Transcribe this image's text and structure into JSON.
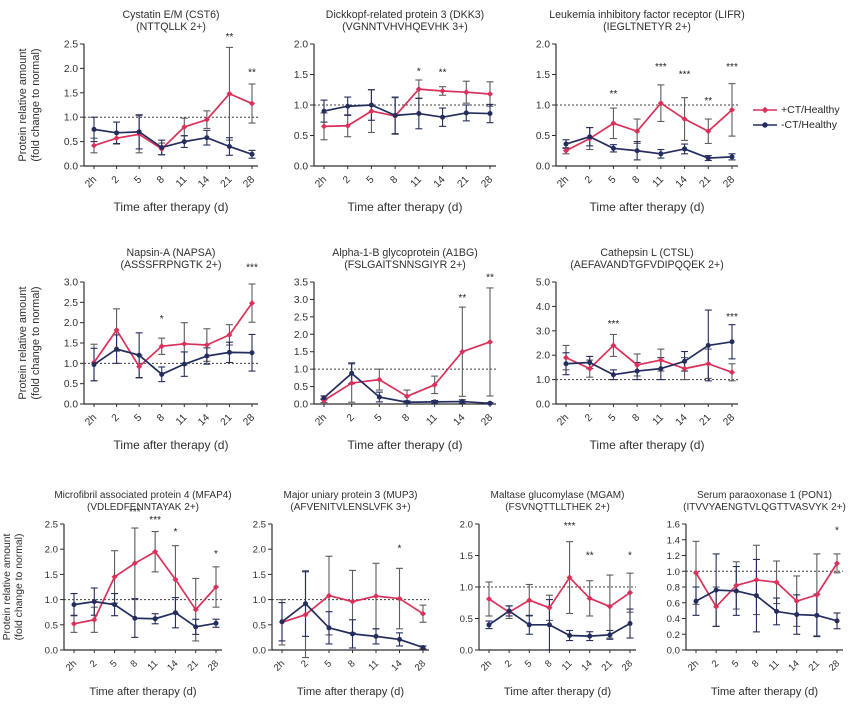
{
  "figure": {
    "background": "#ffffff",
    "legend": {
      "items": [
        {
          "label": "+CT/Healthy",
          "color": "#d9315a",
          "marker": "diamond"
        },
        {
          "label": "-CT/Healthy",
          "color": "#232d5e",
          "marker": "circle"
        }
      ]
    },
    "colors": {
      "plus_ct": "#d9315a",
      "minus_ct": "#232d5e",
      "error_bar_gray": "#5c5c5c",
      "reference_dash": "#3c3c3c",
      "axis": "#2e2e2e",
      "text": "#303030"
    }
  },
  "chart_data": [
    {
      "id": "cst6",
      "type": "line",
      "title": "Cystatin E/M (CST6)",
      "subtitle": "(NTTQLLK 2+)",
      "xlabel": "Time after therapy (d)",
      "ylabel": [
        "Protein relative amount",
        "(fold change to normal)"
      ],
      "categories": [
        "2h",
        "2",
        "5",
        "8",
        "11",
        "14",
        "21",
        "28"
      ],
      "ylim": [
        0,
        2.5
      ],
      "ystep": 0.5,
      "ref_line": 1.0,
      "series": [
        {
          "name": "+CT/Healthy",
          "color": "#d9315a",
          "error_color": "#5c5c5c",
          "marker": "diamond",
          "values": [
            0.42,
            0.57,
            0.65,
            0.35,
            0.8,
            0.95,
            1.48,
            1.28
          ],
          "errors": [
            0.15,
            0.12,
            0.38,
            0.12,
            0.18,
            0.18,
            0.95,
            0.4
          ]
        },
        {
          "name": "-CT/Healthy",
          "color": "#232d5e",
          "error_color": "#232d5e",
          "marker": "circle",
          "values": [
            0.75,
            0.68,
            0.7,
            0.38,
            0.5,
            0.58,
            0.4,
            0.24
          ],
          "errors": [
            0.25,
            0.22,
            0.35,
            0.15,
            0.12,
            0.15,
            0.18,
            0.08
          ]
        }
      ],
      "annotations": [
        {
          "x": "21",
          "y": 2.58,
          "text": "**"
        },
        {
          "x": "28",
          "y": 1.85,
          "text": "**"
        }
      ]
    },
    {
      "id": "dkk3",
      "type": "line",
      "title": "Dickkopf-related protein 3 (DKK3)",
      "subtitle": "(VGNNTVHVHQEVHK 3+)",
      "xlabel": "Time after therapy (d)",
      "ylabel": null,
      "categories": [
        "2h",
        "2",
        "5",
        "8",
        "11",
        "14",
        "21",
        "28"
      ],
      "ylim": [
        0,
        2.0
      ],
      "ystep": 0.5,
      "ref_line": 1.0,
      "series": [
        {
          "name": "+CT/Healthy",
          "color": "#d9315a",
          "error_color": "#5c5c5c",
          "marker": "diamond",
          "values": [
            0.65,
            0.66,
            0.9,
            0.82,
            1.26,
            1.23,
            1.21,
            1.18
          ],
          "errors": [
            0.22,
            0.18,
            0.35,
            0.3,
            0.15,
            0.07,
            0.18,
            0.2
          ]
        },
        {
          "name": "-CT/Healthy",
          "color": "#232d5e",
          "error_color": "#232d5e",
          "marker": "circle",
          "values": [
            0.9,
            0.98,
            1.0,
            0.83,
            0.86,
            0.8,
            0.87,
            0.86
          ],
          "errors": [
            0.18,
            0.15,
            0.25,
            0.3,
            0.25,
            0.15,
            0.13,
            0.15
          ]
        }
      ],
      "annotations": [
        {
          "x": "11",
          "y": 1.5,
          "text": "*"
        },
        {
          "x": "14",
          "y": 1.48,
          "text": "**"
        }
      ]
    },
    {
      "id": "lifr",
      "type": "line",
      "title": "Leukemia inhibitory factor receptor (LIFR)",
      "subtitle": "(IEGLTNETYR 2+)",
      "xlabel": "Time after therapy (d)",
      "ylabel": null,
      "categories": [
        "2h",
        "2",
        "5",
        "8",
        "11",
        "14",
        "21",
        "28"
      ],
      "ylim": [
        0,
        2.0
      ],
      "ystep": 0.5,
      "ref_line": 1.0,
      "series": [
        {
          "name": "+CT/Healthy",
          "color": "#d9315a",
          "error_color": "#5c5c5c",
          "marker": "diamond",
          "values": [
            0.25,
            0.45,
            0.7,
            0.57,
            1.03,
            0.77,
            0.57,
            0.92
          ],
          "errors": [
            0.05,
            0.18,
            0.25,
            0.2,
            0.3,
            0.35,
            0.2,
            0.43
          ]
        },
        {
          "name": "-CT/Healthy",
          "color": "#232d5e",
          "error_color": "#232d5e",
          "marker": "circle",
          "values": [
            0.36,
            0.48,
            0.29,
            0.25,
            0.2,
            0.28,
            0.13,
            0.15
          ],
          "errors": [
            0.07,
            0.15,
            0.06,
            0.15,
            0.07,
            0.08,
            0.04,
            0.05
          ]
        }
      ],
      "annotations": [
        {
          "x": "5",
          "y": 1.13,
          "text": "**"
        },
        {
          "x": "11",
          "y": 1.57,
          "text": "***"
        },
        {
          "x": "14",
          "y": 1.45,
          "text": "***"
        },
        {
          "x": "21",
          "y": 1.02,
          "text": "**"
        },
        {
          "x": "28",
          "y": 1.57,
          "text": "***"
        }
      ]
    },
    {
      "id": "napsa",
      "type": "line",
      "title": "Napsin-A (NAPSA)",
      "subtitle": "(ASSSFRPNGTK 2+)",
      "xlabel": "Time after therapy (d)",
      "ylabel": [
        "Protein relative amount",
        "(fold change to normal)"
      ],
      "categories": [
        "2h",
        "2",
        "5",
        "8",
        "11",
        "14",
        "21",
        "28"
      ],
      "ylim": [
        0,
        3.0
      ],
      "ystep": 0.5,
      "ref_line": 1.0,
      "series": [
        {
          "name": "+CT/Healthy",
          "color": "#d9315a",
          "error_color": "#5c5c5c",
          "marker": "diamond",
          "values": [
            1.02,
            1.82,
            0.92,
            1.42,
            1.48,
            1.45,
            1.7,
            2.48
          ],
          "errors": [
            0.45,
            0.52,
            0.28,
            0.2,
            0.52,
            0.4,
            0.25,
            0.47
          ]
        },
        {
          "name": "-CT/Healthy",
          "color": "#232d5e",
          "error_color": "#232d5e",
          "marker": "circle",
          "values": [
            0.97,
            1.35,
            1.2,
            0.73,
            0.98,
            1.18,
            1.27,
            1.26
          ],
          "errors": [
            0.4,
            0.35,
            0.55,
            0.18,
            0.3,
            0.2,
            0.25,
            0.45
          ]
        }
      ],
      "annotations": [
        {
          "x": "8",
          "y": 2.02,
          "text": "*"
        },
        {
          "x": "28",
          "y": 3.28,
          "text": "***"
        }
      ]
    },
    {
      "id": "a1bg",
      "type": "line",
      "title": "Alpha-1-B glycoprotein (A1BG)",
      "subtitle": "(FSLGAITSNNSGIYR 2+)",
      "xlabel": "Time after therapy (d)",
      "ylabel": null,
      "categories": [
        "2h",
        "2",
        "5",
        "8",
        "11",
        "14",
        "28"
      ],
      "ylim": [
        0,
        3.5
      ],
      "ystep": 0.5,
      "ref_line": 1.0,
      "series": [
        {
          "name": "+CT/Healthy",
          "color": "#d9315a",
          "error_color": "#5c5c5c",
          "marker": "diamond",
          "values": [
            0.1,
            0.6,
            0.7,
            0.22,
            0.55,
            1.5,
            1.78
          ],
          "errors": [
            0.06,
            0.55,
            0.3,
            0.18,
            0.25,
            1.28,
            1.55
          ]
        },
        {
          "name": "-CT/Healthy",
          "color": "#232d5e",
          "error_color": "#232d5e",
          "marker": "circle",
          "values": [
            0.18,
            0.88,
            0.2,
            0.05,
            0.06,
            0.07,
            0.02
          ],
          "errors": [
            0.05,
            0.3,
            0.14,
            0.04,
            0.04,
            0.05,
            0.02
          ]
        }
      ],
      "annotations": [
        {
          "x": "14",
          "y": 2.95,
          "text": "**"
        },
        {
          "x": "28",
          "y": 3.55,
          "text": "**"
        }
      ]
    },
    {
      "id": "ctsl",
      "type": "line",
      "title": "Cathepsin L (CTSL)",
      "subtitle": "(AEFAVANDTGFVDIPQQEK 2+)",
      "xlabel": "Time after therapy (d)",
      "ylabel": null,
      "categories": [
        "2h",
        "2",
        "5",
        "8",
        "11",
        "14",
        "21",
        "28"
      ],
      "ylim": [
        0,
        5.0
      ],
      "ystep": 1.0,
      "ref_line": 1.0,
      "series": [
        {
          "name": "+CT/Healthy",
          "color": "#d9315a",
          "error_color": "#5c5c5c",
          "marker": "diamond",
          "values": [
            1.9,
            1.45,
            2.4,
            1.6,
            1.8,
            1.45,
            1.65,
            1.3
          ],
          "errors": [
            0.5,
            0.35,
            0.45,
            0.45,
            0.45,
            0.45,
            0.6,
            0.35
          ]
        },
        {
          "name": "-CT/Healthy",
          "color": "#232d5e",
          "error_color": "#232d5e",
          "marker": "circle",
          "values": [
            1.65,
            1.7,
            1.2,
            1.35,
            1.45,
            1.75,
            2.4,
            2.55
          ],
          "errors": [
            0.45,
            0.25,
            0.2,
            0.35,
            0.45,
            0.4,
            1.45,
            0.7
          ]
        }
      ],
      "annotations": [
        {
          "x": "5",
          "y": 3.15,
          "text": "***"
        },
        {
          "x": "28",
          "y": 3.45,
          "text": "***"
        }
      ]
    },
    {
      "id": "mfap4",
      "type": "line",
      "title": "Microfibril associated protein 4 (MFAP4)",
      "subtitle": "(VDLEDFENNTAYAK 2+)",
      "xlabel": "Time after therapy (d)",
      "ylabel": [
        "Protein relative amount",
        "(fold change to normal)"
      ],
      "categories": [
        "2h",
        "2",
        "5",
        "8",
        "11",
        "14",
        "21",
        "28"
      ],
      "ylim": [
        0,
        2.5
      ],
      "ystep": 0.5,
      "ref_line": 1.0,
      "series": [
        {
          "name": "+CT/Healthy",
          "color": "#d9315a",
          "error_color": "#5c5c5c",
          "marker": "diamond",
          "values": [
            0.52,
            0.6,
            1.45,
            1.72,
            1.95,
            1.4,
            0.8,
            1.25
          ],
          "errors": [
            0.17,
            0.25,
            0.52,
            0.7,
            0.4,
            0.67,
            0.62,
            0.4
          ]
        },
        {
          "name": "-CT/Healthy",
          "color": "#232d5e",
          "error_color": "#232d5e",
          "marker": "circle",
          "values": [
            0.9,
            0.96,
            0.9,
            0.63,
            0.62,
            0.74,
            0.46,
            0.53
          ],
          "errors": [
            0.22,
            0.27,
            0.22,
            0.38,
            0.1,
            0.3,
            0.15,
            0.08
          ]
        }
      ],
      "annotations": [
        {
          "x": "8",
          "y": 2.68,
          "text": "***"
        },
        {
          "x": "11",
          "y": 2.52,
          "text": "***"
        },
        {
          "x": "14",
          "y": 2.28,
          "text": "*"
        },
        {
          "x": "28",
          "y": 1.85,
          "text": "*"
        }
      ]
    },
    {
      "id": "mup3",
      "type": "line",
      "title": "Major uniary protein 3 (MUP3)",
      "subtitle": "(AFVENITVLENSLVFK 3+)",
      "xlabel": "Time after therapy (d)",
      "ylabel": null,
      "categories": [
        "2h",
        "2",
        "5",
        "8",
        "11",
        "14",
        "28"
      ],
      "ylim": [
        0,
        2.5
      ],
      "ystep": 0.5,
      "ref_line": 1.0,
      "series": [
        {
          "name": "+CT/Healthy",
          "color": "#d9315a",
          "error_color": "#5c5c5c",
          "marker": "diamond",
          "values": [
            0.55,
            0.7,
            1.08,
            0.96,
            1.07,
            1.02,
            0.72
          ],
          "errors": [
            0.45,
            0.85,
            0.78,
            0.62,
            0.65,
            0.6,
            0.17
          ]
        },
        {
          "name": "-CT/Healthy",
          "color": "#232d5e",
          "error_color": "#232d5e",
          "marker": "circle",
          "values": [
            0.56,
            0.92,
            0.44,
            0.32,
            0.27,
            0.21,
            0.05
          ],
          "errors": [
            0.38,
            0.65,
            0.32,
            0.28,
            0.15,
            0.13,
            0.03
          ]
        }
      ],
      "annotations": [
        {
          "x": "14",
          "y": 1.95,
          "text": "*"
        }
      ]
    },
    {
      "id": "mgam",
      "type": "line",
      "title": "Maltase glucomylase (MGAM)",
      "subtitle": "(FSVNQTTLLTHEK 2+)",
      "xlabel": "Time after therapy (d)",
      "ylabel": null,
      "categories": [
        "2h",
        "2",
        "5",
        "8",
        "11",
        "14",
        "21",
        "28"
      ],
      "ylim": [
        0,
        2.0
      ],
      "ystep": 0.5,
      "ref_line": 1.0,
      "series": [
        {
          "name": "+CT/Healthy",
          "color": "#d9315a",
          "error_color": "#5c5c5c",
          "marker": "diamond",
          "values": [
            0.81,
            0.6,
            0.79,
            0.67,
            1.15,
            0.82,
            0.69,
            0.91
          ],
          "errors": [
            0.27,
            0.1,
            0.25,
            0.2,
            0.57,
            0.28,
            0.5,
            0.31
          ]
        },
        {
          "name": "-CT/Healthy",
          "color": "#232d5e",
          "error_color": "#232d5e",
          "marker": "circle",
          "values": [
            0.4,
            0.62,
            0.4,
            0.4,
            0.23,
            0.22,
            0.24,
            0.42
          ],
          "errors": [
            0.06,
            0.08,
            0.15,
            0.4,
            0.08,
            0.07,
            0.07,
            0.23
          ]
        }
      ],
      "annotations": [
        {
          "x": "11",
          "y": 1.92,
          "text": "***"
        },
        {
          "x": "14",
          "y": 1.45,
          "text": "**"
        },
        {
          "x": "28",
          "y": 1.45,
          "text": "*"
        }
      ]
    },
    {
      "id": "pon1",
      "type": "line",
      "title": "Serum paraoxonase 1 (PON1)",
      "subtitle": "(ITVVYAENGTVLQGTTVASVYK 2+)",
      "xlabel": "Time after therapy (d)",
      "ylabel": null,
      "categories": [
        "2h",
        "2",
        "5",
        "8",
        "11",
        "14",
        "21",
        "28"
      ],
      "ylim": [
        0,
        1.6
      ],
      "ystep": 0.2,
      "ref_line": 1.0,
      "series": [
        {
          "name": "+CT/Healthy",
          "color": "#d9315a",
          "error_color": "#5c5c5c",
          "marker": "diamond",
          "values": [
            0.98,
            0.55,
            0.82,
            0.89,
            0.86,
            0.62,
            0.7,
            1.1
          ],
          "errors": [
            0.4,
            0.25,
            0.3,
            0.44,
            0.27,
            0.32,
            0.52,
            0.12
          ]
        },
        {
          "name": "-CT/Healthy",
          "color": "#232d5e",
          "error_color": "#232d5e",
          "marker": "circle",
          "values": [
            0.62,
            0.76,
            0.75,
            0.69,
            0.49,
            0.45,
            0.44,
            0.37
          ],
          "errors": [
            0.18,
            0.46,
            0.31,
            0.46,
            0.17,
            0.25,
            0.27,
            0.1
          ]
        }
      ],
      "annotations": [
        {
          "x": "28",
          "y": 1.48,
          "text": "*"
        }
      ]
    }
  ]
}
